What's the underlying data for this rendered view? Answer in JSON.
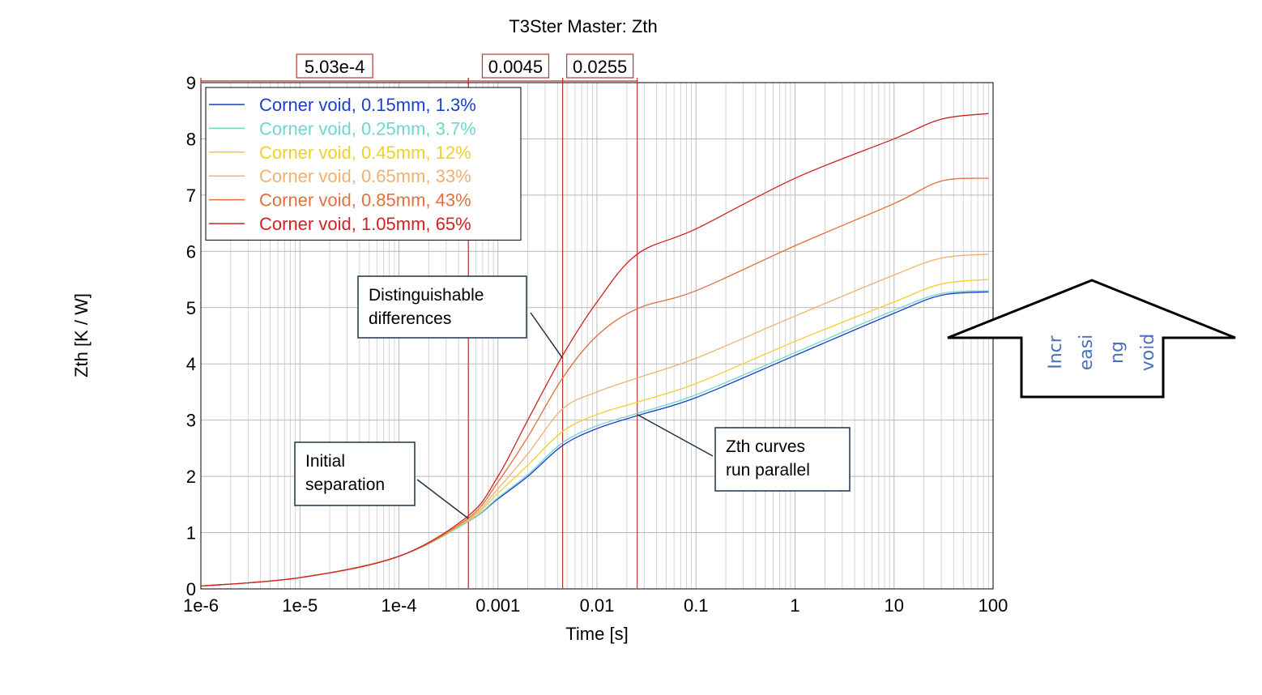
{
  "chart_data": {
    "type": "line",
    "title": "T3Ster Master: Zth",
    "xlabel": "Time [s]",
    "ylabel": "Zth [K / W]",
    "xscale": "log",
    "xlim": [
      1e-06,
      100
    ],
    "ylim": [
      0,
      9
    ],
    "grid": true,
    "legend_position": "top-left",
    "x_ticks": [
      {
        "value": 1e-06,
        "label": "1e-6"
      },
      {
        "value": 1e-05,
        "label": "1e-5"
      },
      {
        "value": 0.0001,
        "label": "1e-4"
      },
      {
        "value": 0.001,
        "label": "0.001"
      },
      {
        "value": 0.01,
        "label": "0.01"
      },
      {
        "value": 0.1,
        "label": "0.1"
      },
      {
        "value": 1,
        "label": "1"
      },
      {
        "value": 10,
        "label": "10"
      },
      {
        "value": 100,
        "label": "100"
      }
    ],
    "y_ticks": [
      0,
      1,
      2,
      3,
      4,
      5,
      6,
      7,
      8,
      9
    ],
    "markers": [
      {
        "x": 0.000503,
        "label": "5.03e-4"
      },
      {
        "x": 0.0045,
        "label": "0.0045"
      },
      {
        "x": 0.0255,
        "label": "0.0255"
      }
    ],
    "x_points": [
      1e-06,
      1e-05,
      0.0001,
      0.000503,
      0.001,
      0.002,
      0.0045,
      0.01,
      0.0255,
      0.1,
      1,
      10,
      30,
      90
    ],
    "series": [
      {
        "name": "Corner void, 0.15mm, 1.3%",
        "color": "#1a3fc8",
        "values": [
          0.05,
          0.2,
          0.58,
          1.2,
          1.6,
          2.0,
          2.55,
          2.85,
          3.08,
          3.4,
          4.15,
          4.9,
          5.22,
          5.28
        ]
      },
      {
        "name": "Corner void, 0.25mm, 3.7%",
        "color": "#6fd6cc",
        "values": [
          0.05,
          0.2,
          0.58,
          1.2,
          1.62,
          2.03,
          2.6,
          2.9,
          3.12,
          3.45,
          4.2,
          4.95,
          5.25,
          5.3
        ]
      },
      {
        "name": "Corner void, 0.45mm, 12%",
        "color": "#f1cf2c",
        "values": [
          0.05,
          0.2,
          0.58,
          1.22,
          1.7,
          2.2,
          2.8,
          3.1,
          3.32,
          3.65,
          4.4,
          5.1,
          5.42,
          5.5
        ]
      },
      {
        "name": "Corner void, 0.65mm, 33%",
        "color": "#f0b070",
        "values": [
          0.05,
          0.2,
          0.58,
          1.24,
          1.78,
          2.4,
          3.2,
          3.5,
          3.75,
          4.1,
          4.85,
          5.58,
          5.88,
          5.95
        ]
      },
      {
        "name": "Corner void, 0.85mm, 43%",
        "color": "#e0703e",
        "values": [
          0.05,
          0.2,
          0.58,
          1.26,
          1.9,
          2.7,
          3.75,
          4.5,
          4.98,
          5.3,
          6.1,
          6.85,
          7.25,
          7.3
        ]
      },
      {
        "name": "Corner void, 1.05mm, 65%",
        "color": "#d02222",
        "values": [
          0.05,
          0.2,
          0.58,
          1.3,
          2.0,
          3.0,
          4.15,
          5.1,
          5.95,
          6.4,
          7.3,
          8.0,
          8.35,
          8.45
        ]
      }
    ],
    "annotations": [
      {
        "text_lines": [
          "Distinguishable",
          "differences"
        ],
        "target": {
          "x": 0.0045,
          "y": 4.1
        }
      },
      {
        "text_lines": [
          "Initial",
          "separation"
        ],
        "target": {
          "x": 0.000503,
          "y": 1.25
        }
      },
      {
        "text_lines": [
          "Zth curves",
          "run parallel"
        ],
        "target": {
          "x": 0.0255,
          "y": 3.1
        }
      }
    ],
    "callout_arrow": {
      "text_lines": [
        "Incr",
        "easi",
        "ng",
        "void"
      ],
      "direction": "up",
      "text_color": "#4a70c0"
    }
  }
}
